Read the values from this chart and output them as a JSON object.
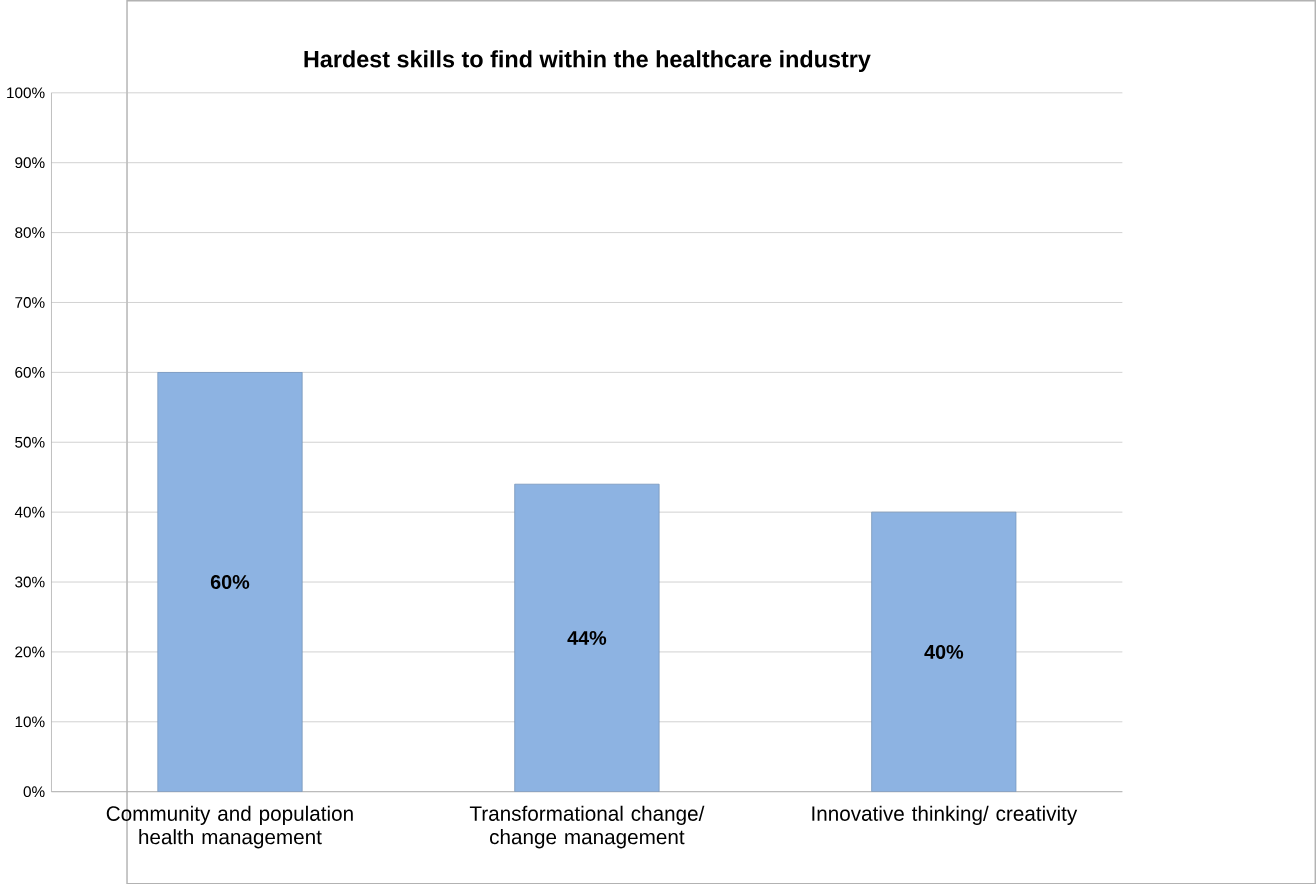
{
  "chart_data": {
    "type": "bar",
    "title": "Hardest skills to find within the healthcare industry",
    "categories": [
      "Community and population health management",
      "Transformational change/ change management",
      "Innovative thinking/ creativity"
    ],
    "values": [
      60,
      44,
      40
    ],
    "value_labels": [
      "60%",
      "44%",
      "40%"
    ],
    "color": "#8db3e2",
    "ylim": [
      0,
      100
    ],
    "yticks": [
      {
        "value": 0,
        "label": "0%"
      },
      {
        "value": 10,
        "label": "10%"
      },
      {
        "value": 20,
        "label": "20%"
      },
      {
        "value": 30,
        "label": "30%"
      },
      {
        "value": 40,
        "label": "40%"
      },
      {
        "value": 50,
        "label": "50%"
      },
      {
        "value": 60,
        "label": "60%"
      },
      {
        "value": 70,
        "label": "70%"
      },
      {
        "value": 80,
        "label": "80%"
      },
      {
        "value": 90,
        "label": "90%"
      },
      {
        "value": 100,
        "label": "100%"
      }
    ],
    "grid": "y"
  }
}
